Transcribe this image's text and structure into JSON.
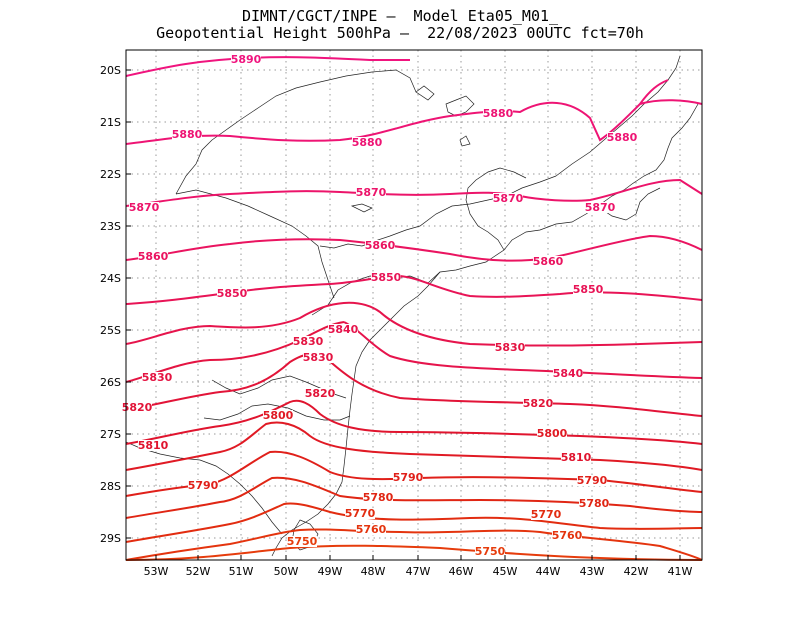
{
  "title": {
    "line1": "DIMNT/CGCT/INPE –  Model Eta05_M01_",
    "line2": "Geopotential Height 500hPa –  22/08/2023 00UTC fct=70h"
  },
  "axes": {
    "lon_labels": [
      "53W",
      "52W",
      "51W",
      "50W",
      "49W",
      "48W",
      "47W",
      "46W",
      "45W",
      "44W",
      "43W",
      "42W",
      "41W"
    ],
    "lat_labels": [
      "20S",
      "21S",
      "22S",
      "23S",
      "24S",
      "25S",
      "26S",
      "27S",
      "28S",
      "29S"
    ]
  },
  "contours": [
    {
      "value": "5890",
      "label": "5890",
      "color": "#f0147e"
    },
    {
      "value": "5880",
      "label": "5880",
      "color": "#ee1474"
    },
    {
      "value": "5870",
      "label": "5870",
      "color": "#ec146a"
    },
    {
      "value": "5860",
      "label": "5860",
      "color": "#ea1460"
    },
    {
      "value": "5850",
      "label": "5850",
      "color": "#e81456"
    },
    {
      "value": "5840",
      "label": "5840",
      "color": "#e6144c"
    },
    {
      "value": "5830",
      "label": "5830",
      "color": "#e41442"
    },
    {
      "value": "5820",
      "label": "5820",
      "color": "#e21438"
    },
    {
      "value": "5810",
      "label": "5810",
      "color": "#e0142e"
    },
    {
      "value": "5800",
      "label": "5800",
      "color": "#e01a24"
    },
    {
      "value": "5790",
      "label": "5790",
      "color": "#e0201a"
    },
    {
      "value": "5780",
      "label": "5780",
      "color": "#e02614"
    },
    {
      "value": "5770",
      "label": "5770",
      "color": "#e22c10"
    },
    {
      "value": "5760",
      "label": "5760",
      "color": "#e4340e"
    },
    {
      "value": "5750",
      "label": "5750",
      "color": "#e63c0c"
    }
  ]
}
